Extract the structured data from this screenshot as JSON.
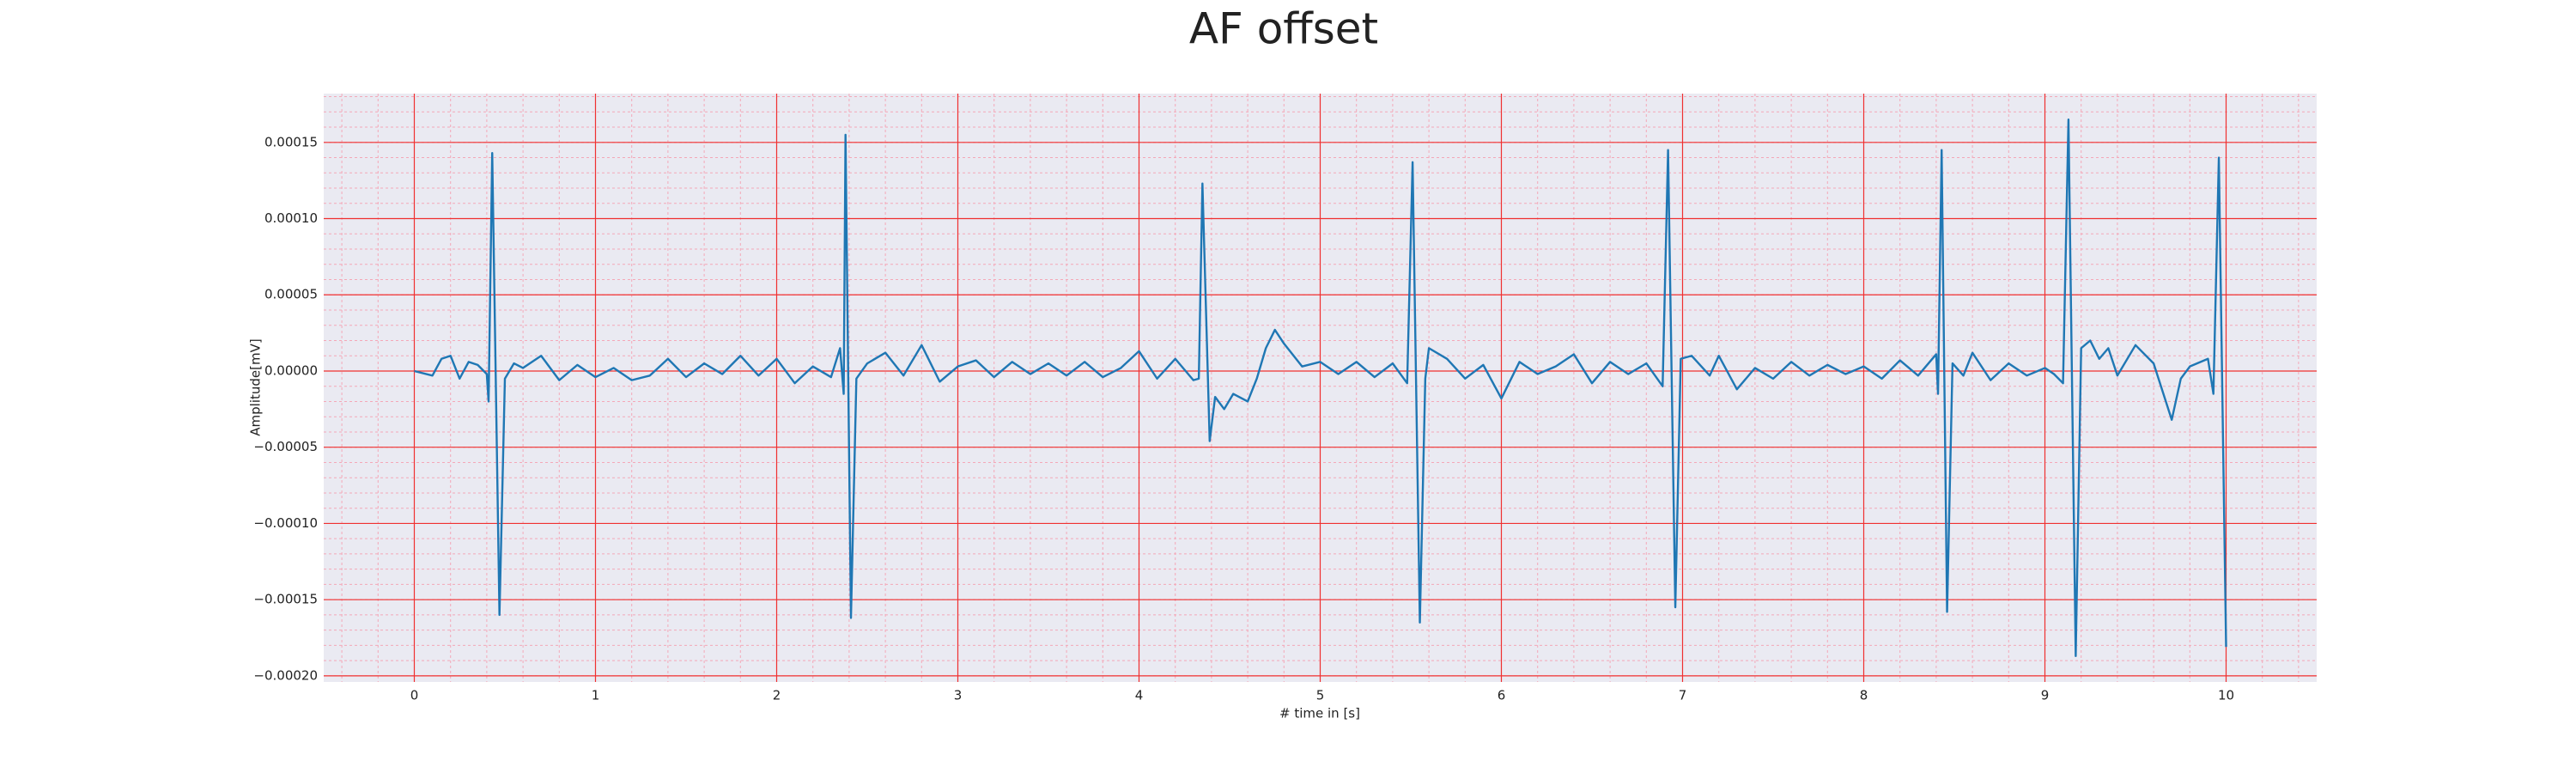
{
  "chart_data": {
    "type": "line",
    "title": "AF offset",
    "xlabel": "# time in [s]",
    "ylabel": "Amplitude[mV]",
    "color": "#1f77b4",
    "background": "#eaeaf2",
    "grid": true,
    "grid_color": "#f03030",
    "minor_grid": true,
    "minor_grid_color": "#f4a8b8",
    "xlim": [
      -0.5,
      10.5
    ],
    "ylim": [
      -0.000204,
      0.000182
    ],
    "xticks": [
      0,
      1,
      2,
      3,
      4,
      5,
      6,
      7,
      8,
      9,
      10
    ],
    "yticks": [
      {
        "value": -0.0002,
        "label": "−0.00020"
      },
      {
        "value": -0.00015,
        "label": "−0.00015"
      },
      {
        "value": -0.0001,
        "label": "−0.00010"
      },
      {
        "value": -5e-05,
        "label": "−0.00005"
      },
      {
        "value": 0,
        "label": "0.00000"
      },
      {
        "value": 5e-05,
        "label": "0.00005"
      },
      {
        "value": 0.0001,
        "label": "0.00010"
      },
      {
        "value": 0.00015,
        "label": "0.00015"
      }
    ],
    "x": [
      0.0,
      0.1,
      0.15,
      0.2,
      0.25,
      0.3,
      0.35,
      0.4,
      0.41,
      0.43,
      0.47,
      0.5,
      0.55,
      0.6,
      0.7,
      0.8,
      0.9,
      1.0,
      1.1,
      1.2,
      1.3,
      1.4,
      1.5,
      1.6,
      1.7,
      1.8,
      1.9,
      2.0,
      2.1,
      2.2,
      2.3,
      2.35,
      2.37,
      2.38,
      2.41,
      2.44,
      2.5,
      2.6,
      2.7,
      2.8,
      2.9,
      3.0,
      3.1,
      3.2,
      3.3,
      3.4,
      3.5,
      3.6,
      3.7,
      3.8,
      3.9,
      4.0,
      4.1,
      4.2,
      4.3,
      4.33,
      4.35,
      4.39,
      4.42,
      4.47,
      4.52,
      4.6,
      4.65,
      4.7,
      4.75,
      4.8,
      4.9,
      5.0,
      5.1,
      5.2,
      5.3,
      5.4,
      5.48,
      5.51,
      5.55,
      5.58,
      5.6,
      5.7,
      5.8,
      5.9,
      6.0,
      6.1,
      6.2,
      6.3,
      6.4,
      6.5,
      6.6,
      6.7,
      6.8,
      6.89,
      6.92,
      6.96,
      6.99,
      7.05,
      7.15,
      7.2,
      7.3,
      7.4,
      7.5,
      7.6,
      7.7,
      7.8,
      7.9,
      8.0,
      8.1,
      8.2,
      8.3,
      8.4,
      8.41,
      8.43,
      8.46,
      8.49,
      8.55,
      8.6,
      8.7,
      8.8,
      8.9,
      9.0,
      9.05,
      9.1,
      9.13,
      9.17,
      9.2,
      9.25,
      9.3,
      9.35,
      9.4,
      9.5,
      9.6,
      9.7,
      9.75,
      9.8,
      9.9,
      9.93,
      9.96,
      10.0
    ],
    "values": [
      0,
      -3e-06,
      8e-06,
      1e-05,
      -5e-06,
      6e-06,
      4e-06,
      -2e-06,
      -2e-05,
      0.000143,
      -0.00016,
      -5e-06,
      5e-06,
      2e-06,
      1e-05,
      -6e-06,
      4e-06,
      -4e-06,
      2e-06,
      -6e-06,
      -3e-06,
      8e-06,
      -4e-06,
      5e-06,
      -2e-06,
      1e-05,
      -3e-06,
      8e-06,
      -8e-06,
      3e-06,
      -4e-06,
      1.5e-05,
      -1.5e-05,
      0.000155,
      -0.000162,
      -5e-06,
      5e-06,
      1.2e-05,
      -3e-06,
      1.7e-05,
      -7e-06,
      3e-06,
      7e-06,
      -4e-06,
      6e-06,
      -2e-06,
      5e-06,
      -3e-06,
      6e-06,
      -4e-06,
      2e-06,
      1.3e-05,
      -5e-06,
      8e-06,
      -6e-06,
      -5e-06,
      0.000123,
      -4.6e-05,
      -1.7e-05,
      -2.5e-05,
      -1.5e-05,
      -2e-05,
      -5e-06,
      1.5e-05,
      2.7e-05,
      1.8e-05,
      3e-06,
      6e-06,
      -2e-06,
      6e-06,
      -4e-06,
      5e-06,
      -8e-06,
      0.000137,
      -0.000165,
      -5e-06,
      1.5e-05,
      8e-06,
      -5e-06,
      4e-06,
      -1.8e-05,
      6e-06,
      -2e-06,
      3e-06,
      1.1e-05,
      -8e-06,
      6e-06,
      -2e-06,
      5e-06,
      -1e-05,
      0.000145,
      -0.000155,
      8e-06,
      1e-05,
      -3e-06,
      1e-05,
      -1.2e-05,
      2e-06,
      -5e-06,
      6e-06,
      -3e-06,
      4e-06,
      -2e-06,
      3e-06,
      -5e-06,
      7e-06,
      -3e-06,
      1.1e-05,
      -1.5e-05,
      0.000145,
      -0.000158,
      5e-06,
      -3e-06,
      1.2e-05,
      -6e-06,
      5e-06,
      -3e-06,
      2e-06,
      -2e-06,
      -8e-06,
      0.000165,
      -0.000187,
      1.5e-05,
      2e-05,
      8e-06,
      1.5e-05,
      -3e-06,
      1.7e-05,
      5e-06,
      -3.2e-05,
      -5e-06,
      3e-06,
      8e-06,
      -1.5e-05,
      0.00014,
      -0.000181
    ]
  }
}
